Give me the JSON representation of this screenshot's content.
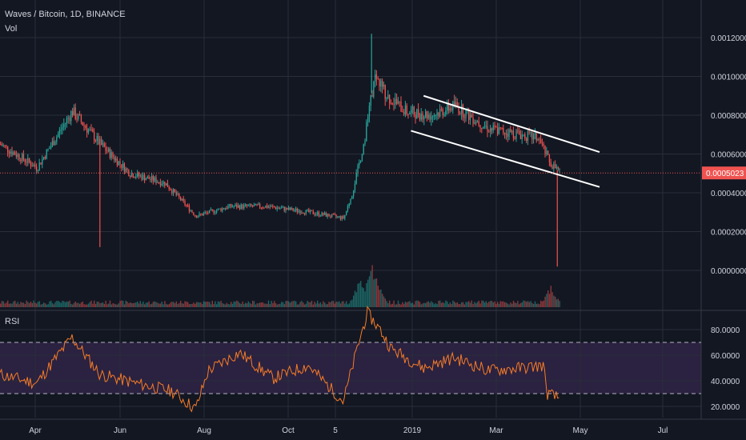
{
  "header": {
    "symbol_line": "Waves / Bitcoin, 1D, BINANCE",
    "volume_label": "Vol",
    "rsi_label": "RSI"
  },
  "colors": {
    "background": "#131722",
    "grid": "#2a2e39",
    "up": "#26a69a",
    "down": "#ef5350",
    "channel": "#ffffff",
    "rsi_line": "#f57c28",
    "rsi_band": "#2b2140",
    "price_tag": "#ef5350"
  },
  "chart_data": [
    {
      "type": "candlestick",
      "title": "Waves / Bitcoin, 1D, BINANCE",
      "x_ticks": [
        "Apr",
        "Jun",
        "Aug",
        "Oct",
        "5",
        "2019",
        "Mar",
        "May",
        "Jul"
      ],
      "y_ticks": [
        "0.0012000",
        "0.0010000",
        "0.0008000",
        "0.0006000",
        "0.0004000",
        "0.0002000",
        "0.0000000"
      ],
      "ylim": [
        0.0,
        0.00125
      ],
      "last_price": "0.0005023",
      "last_price_value": 0.0005023,
      "key_points": [
        {
          "date": "2018-03-15",
          "price": 0.00065
        },
        {
          "date": "2018-04-10",
          "price": 0.00053
        },
        {
          "date": "2018-05-05",
          "price": 0.00082
        },
        {
          "date": "2018-05-25",
          "price": 0.00065
        },
        {
          "date": "2018-06-15",
          "price": 0.0005
        },
        {
          "date": "2018-07-10",
          "price": 0.00045
        },
        {
          "date": "2018-08-01",
          "price": 0.00028
        },
        {
          "date": "2018-08-25",
          "price": 0.00033
        },
        {
          "date": "2018-09-20",
          "price": 0.00033
        },
        {
          "date": "2018-10-20",
          "price": 0.0003
        },
        {
          "date": "2018-11-14",
          "price": 0.00027
        },
        {
          "date": "2018-11-20",
          "price": 0.0004
        },
        {
          "date": "2018-11-28",
          "price": 0.00065
        },
        {
          "date": "2018-12-06",
          "price": 0.001
        },
        {
          "date": "2018-12-15",
          "price": 0.0009
        },
        {
          "date": "2018-12-28",
          "price": 0.00082
        },
        {
          "date": "2019-01-15",
          "price": 0.0008
        },
        {
          "date": "2019-02-01",
          "price": 0.00085
        },
        {
          "date": "2019-02-25",
          "price": 0.00073
        },
        {
          "date": "2019-03-20",
          "price": 0.0007
        },
        {
          "date": "2019-04-01",
          "price": 0.00068
        },
        {
          "date": "2019-04-10",
          "price": 0.00055
        },
        {
          "date": "2019-04-17",
          "price": 0.0005023
        }
      ],
      "spikes": [
        {
          "date": "2018-05-25",
          "low": 0.00012
        },
        {
          "date": "2019-04-15",
          "low": 2e-05
        },
        {
          "date": "2018-12-04",
          "high": 0.00122
        }
      ],
      "channel": {
        "upper": [
          {
            "date": "2019-01-10",
            "price": 0.0009
          },
          {
            "date": "2019-05-15",
            "price": 0.00061
          }
        ],
        "lower": [
          {
            "date": "2019-01-01",
            "price": 0.00072
          },
          {
            "date": "2019-05-15",
            "price": 0.00043
          }
        ]
      }
    },
    {
      "type": "bar",
      "title": "Vol",
      "description_series": "volume",
      "peaks": [
        {
          "date": "2018-11-25",
          "relative": 0.55
        },
        {
          "date": "2018-12-04",
          "relative": 0.85
        },
        {
          "date": "2018-12-08",
          "relative": 0.65
        },
        {
          "date": "2019-04-10",
          "relative": 0.45
        }
      ]
    },
    {
      "type": "line",
      "title": "RSI",
      "y_ticks": [
        "80.0000",
        "60.0000",
        "40.0000",
        "20.0000"
      ],
      "ylim": [
        12,
        95
      ],
      "upper_band": 70,
      "lower_band": 30,
      "key_points": [
        {
          "date": "2018-03-15",
          "value": 45
        },
        {
          "date": "2018-04-10",
          "value": 38
        },
        {
          "date": "2018-05-05",
          "value": 74
        },
        {
          "date": "2018-05-25",
          "value": 45
        },
        {
          "date": "2018-06-20",
          "value": 38
        },
        {
          "date": "2018-07-15",
          "value": 32
        },
        {
          "date": "2018-08-01",
          "value": 18
        },
        {
          "date": "2018-08-10",
          "value": 48
        },
        {
          "date": "2018-09-01",
          "value": 62
        },
        {
          "date": "2018-09-25",
          "value": 42
        },
        {
          "date": "2018-10-20",
          "value": 52
        },
        {
          "date": "2018-11-14",
          "value": 24
        },
        {
          "date": "2018-11-25",
          "value": 70
        },
        {
          "date": "2018-12-01",
          "value": 93
        },
        {
          "date": "2018-12-10",
          "value": 80
        },
        {
          "date": "2018-12-18",
          "value": 65
        },
        {
          "date": "2019-01-10",
          "value": 50
        },
        {
          "date": "2019-02-01",
          "value": 58
        },
        {
          "date": "2019-02-25",
          "value": 48
        },
        {
          "date": "2019-03-20",
          "value": 50
        },
        {
          "date": "2019-04-05",
          "value": 52
        },
        {
          "date": "2019-04-08",
          "value": 30
        },
        {
          "date": "2019-04-17",
          "value": 26
        }
      ]
    }
  ]
}
